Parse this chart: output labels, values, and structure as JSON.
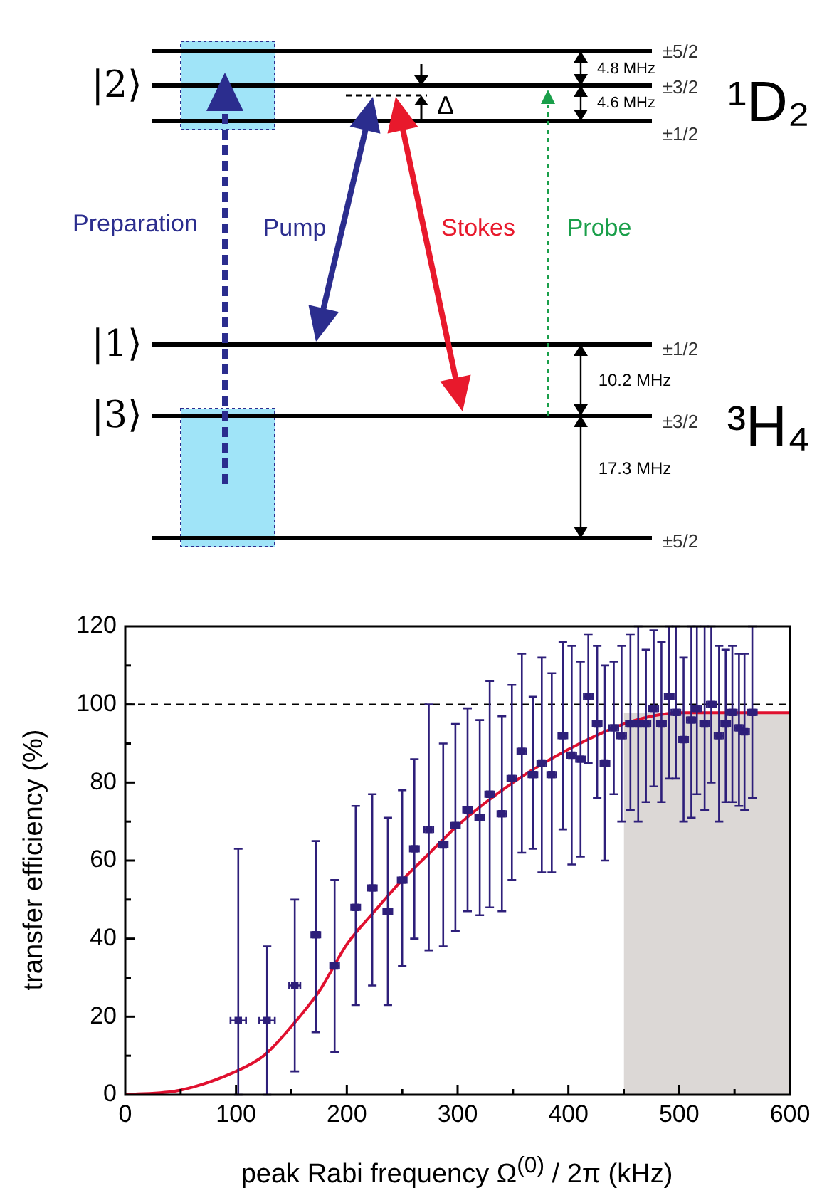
{
  "chart_data": [
    {
      "type": "other",
      "annotations": [
        "|2⟩",
        "|1⟩",
        "|3⟩",
        "Preparation",
        "Pump",
        "Stokes",
        "Probe",
        "Δ",
        "4.8 MHz",
        "4.6 MHz",
        "10.2 MHz",
        "17.3 MHz",
        "±5/2",
        "±3/2",
        "±1/2",
        "±1/2",
        "±3/2",
        "±5/2",
        "¹D₂",
        "³H₄"
      ]
    },
    {
      "type": "scatter",
      "xlabel": "peak Rabi frequency Ω$^{(0)}$ / 2π  (kHz)",
      "ylabel": "transfer efficiency (%)",
      "xlim": [
        0,
        600
      ],
      "xticks": [
        0,
        {
          "value": 50,
          "label": null
        },
        100,
        {
          "value": 150,
          "label": null
        },
        200,
        {
          "value": 250,
          "label": null
        },
        300,
        {
          "value": 350,
          "label": null
        },
        400,
        {
          "value": 450,
          "label": null
        },
        500,
        {
          "value": 550,
          "label": null
        },
        600
      ],
      "ylim": [
        0,
        120
      ],
      "yticks": [
        0,
        {
          "value": 10,
          "label": null
        },
        20,
        {
          "value": 30,
          "label": null
        },
        40,
        {
          "value": 50,
          "label": null
        },
        60,
        {
          "value": 70,
          "label": null
        },
        80,
        {
          "value": 90,
          "label": null
        },
        100,
        {
          "value": 110,
          "label": null
        },
        120
      ],
      "ref_lines": [
        {
          "axis": "y",
          "value": 100,
          "color": "#000000",
          "line_style": "dashed"
        }
      ],
      "series": [
        {
          "type": "area",
          "color": "#dcd8d6",
          "x": [
            450,
            600
          ],
          "values": [
            97.9,
            97.9
          ]
        },
        {
          "type": "line",
          "color": "#e0102f",
          "x": [
            0,
            50,
            100,
            125,
            150,
            175,
            200,
            225,
            250,
            275,
            300,
            350,
            400,
            450,
            475,
            500,
            600
          ],
          "values": [
            0,
            1.2,
            6,
            10,
            17.5,
            26.5,
            38.5,
            47,
            55,
            62,
            69,
            80,
            88.5,
            95,
            97,
            97.9,
            97.9
          ]
        },
        {
          "type": "scatter",
          "color": "#2e1f7a",
          "marker": "square",
          "x": [
            102,
            128,
            153,
            172,
            189,
            208,
            223,
            237,
            250,
            261,
            274,
            287,
            298,
            309,
            320,
            329,
            340,
            349,
            358,
            368,
            376,
            385,
            395,
            403,
            411,
            418,
            426,
            433,
            441,
            448,
            456,
            463,
            470,
            477,
            484,
            491,
            497,
            504,
            511,
            516,
            523,
            529,
            536,
            542,
            548,
            554,
            559,
            566
          ],
          "values": [
            19,
            19,
            28,
            41,
            33,
            48,
            53,
            47,
            55,
            63,
            68,
            64,
            69,
            73,
            71,
            77,
            72,
            81,
            88,
            82,
            85,
            82,
            92,
            87,
            86,
            102,
            95,
            85,
            94,
            92,
            95,
            95,
            95,
            99,
            95,
            102,
            98,
            91,
            96,
            99,
            95,
            100,
            92,
            95,
            98,
            94,
            93,
            98
          ],
          "errors": [
            [
              0,
              63
            ],
            [
              0,
              38
            ],
            [
              6,
              50
            ],
            [
              16,
              65
            ],
            [
              11,
              55
            ],
            [
              23,
              74
            ],
            [
              28,
              77
            ],
            [
              23,
              71
            ],
            [
              33,
              78
            ],
            [
              40,
              86
            ],
            [
              37,
              100
            ],
            [
              38,
              90
            ],
            [
              42,
              95
            ],
            [
              47,
              99
            ],
            [
              46,
              96
            ],
            [
              48,
              106
            ],
            [
              47,
              97
            ],
            [
              55,
              105
            ],
            [
              62,
              113
            ],
            [
              63,
              102
            ],
            [
              57,
              112
            ],
            [
              57,
              108
            ],
            [
              68,
              116
            ],
            [
              59,
              115
            ],
            [
              61,
              111
            ],
            [
              85,
              118
            ],
            [
              76,
              115
            ],
            [
              60,
              110
            ],
            [
              77,
              111
            ],
            [
              70,
              115
            ],
            [
              73,
              118
            ],
            [
              70,
              120
            ],
            [
              75,
              114
            ],
            [
              79,
              119
            ],
            [
              75,
              116
            ],
            [
              81,
              120
            ],
            [
              81,
              120
            ],
            [
              70,
              112
            ],
            [
              71,
              120
            ],
            [
              77,
              120
            ],
            [
              73,
              120
            ],
            [
              80,
              120
            ],
            [
              70,
              115
            ],
            [
              75,
              114
            ],
            [
              75,
              115
            ],
            [
              74,
              113
            ],
            [
              73,
              113
            ],
            [
              76,
              120
            ]
          ],
          "xerrors": [
            7,
            7,
            5,
            4,
            4,
            4,
            4,
            4,
            4,
            4,
            4,
            4,
            4,
            4,
            4,
            4,
            4,
            4,
            4,
            4,
            4,
            4,
            4,
            4,
            4,
            4,
            4,
            4,
            4,
            4,
            4,
            4,
            4,
            4,
            4,
            4,
            4,
            4,
            4,
            4,
            4,
            4,
            4,
            4,
            4,
            4,
            4,
            4
          ]
        }
      ]
    }
  ]
}
